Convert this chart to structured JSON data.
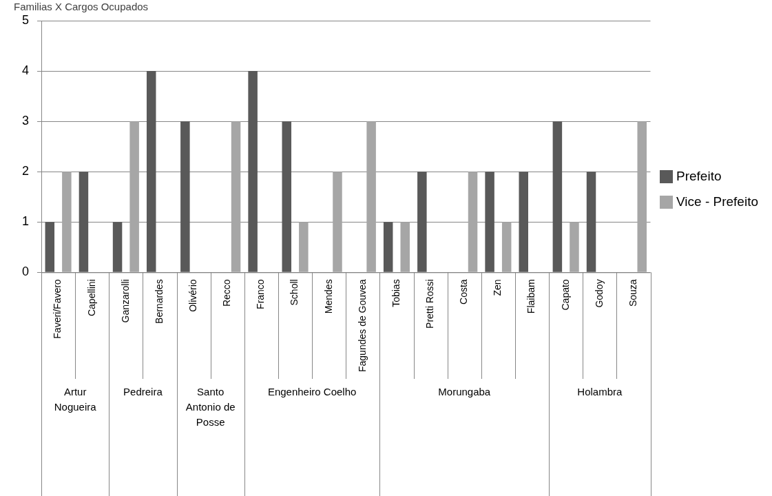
{
  "chart_data": {
    "type": "bar",
    "title": "Familias X Cargos Ocupados",
    "categories": [
      "Faveri/Favero",
      "Capellini",
      "Ganzarolli",
      "Bernardes",
      "Olivério",
      "Recco",
      "Franco",
      "Scholl",
      "Mendes",
      "Fagundes de Gouvea",
      "Tobias",
      "Pretti Rossi",
      "Costa",
      "Zen",
      "Flaibam",
      "Capato",
      "Godoy",
      "Souza"
    ],
    "series": [
      {
        "name": "Prefeito",
        "color": "#595959",
        "values": [
          1,
          2,
          1,
          4,
          3,
          0,
          4,
          3,
          0,
          0,
          1,
          2,
          0,
          2,
          2,
          3,
          2,
          0
        ]
      },
      {
        "name": "Vice - Prefeito",
        "color": "#a6a6a6",
        "values": [
          2,
          0,
          3,
          0,
          0,
          3,
          0,
          1,
          2,
          3,
          1,
          0,
          2,
          1,
          0,
          1,
          0,
          3
        ]
      }
    ],
    "ylim": [
      0,
      5
    ],
    "yticks": [
      0,
      1,
      2,
      3,
      4,
      5
    ],
    "grid": "y",
    "legend": "right",
    "annotations": [
      "Artur Nogueira",
      "Pedreira",
      "Santo Antonio de Posse",
      "Engenheiro Coelho",
      "Morungaba",
      "Holambra"
    ]
  }
}
